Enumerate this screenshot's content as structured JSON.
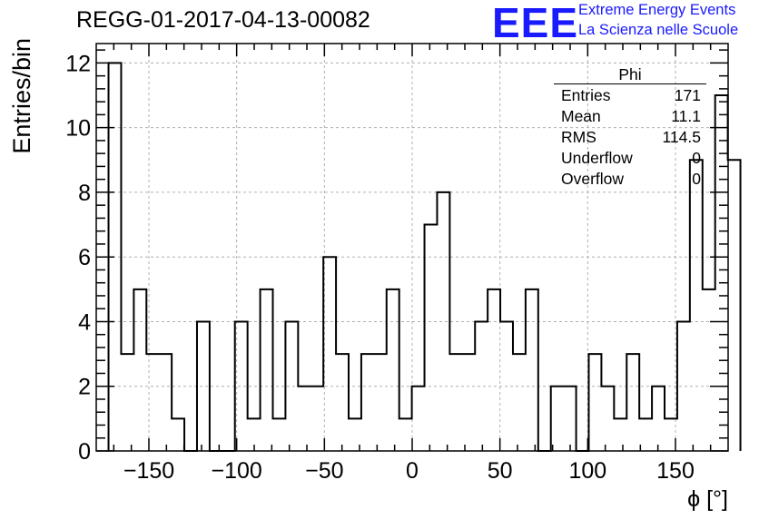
{
  "header": {
    "title": "REGG-01-2017-04-13-00082",
    "logo_text": "EEE",
    "logo_line1": "Extreme Energy Events",
    "logo_line2": "La Scienza nelle Scuole",
    "logo_color": "#1a1aff"
  },
  "stats": {
    "title": "Phi",
    "rows": [
      {
        "label": "Entries",
        "value": "171"
      },
      {
        "label": "Mean",
        "value": "11.1"
      },
      {
        "label": "RMS",
        "value": "114.5"
      },
      {
        "label": "Underflow",
        "value": "0"
      },
      {
        "label": "Overflow",
        "value": "0"
      }
    ]
  },
  "chart_data": {
    "type": "histogram",
    "xlabel": "ϕ [°]",
    "ylabel": "Entries/bin",
    "xlim": [
      -180,
      180
    ],
    "ylim": [
      0,
      12.6
    ],
    "bin_width": 7.2,
    "bin_start": -173,
    "x_ticks": [
      -150,
      -100,
      -50,
      0,
      50,
      100,
      150
    ],
    "x_tick_labels": [
      "−150",
      "−100",
      "−50",
      "0",
      "50",
      "100",
      "150"
    ],
    "y_ticks": [
      0,
      2,
      4,
      6,
      8,
      10,
      12
    ],
    "y_tick_labels": [
      "0",
      "2",
      "4",
      "6",
      "8",
      "10",
      "12"
    ],
    "grid": true,
    "line_color": "#000000",
    "values": [
      12,
      3,
      5,
      3,
      3,
      1,
      0,
      4,
      0,
      0,
      4,
      1,
      5,
      1,
      4,
      2,
      2,
      6,
      3,
      1,
      3,
      3,
      5,
      1,
      2,
      7,
      8,
      3,
      3,
      4,
      5,
      4,
      3,
      5,
      0,
      2,
      2,
      0,
      3,
      2,
      1,
      3,
      1,
      2,
      1,
      4,
      9,
      5,
      11,
      9
    ]
  }
}
